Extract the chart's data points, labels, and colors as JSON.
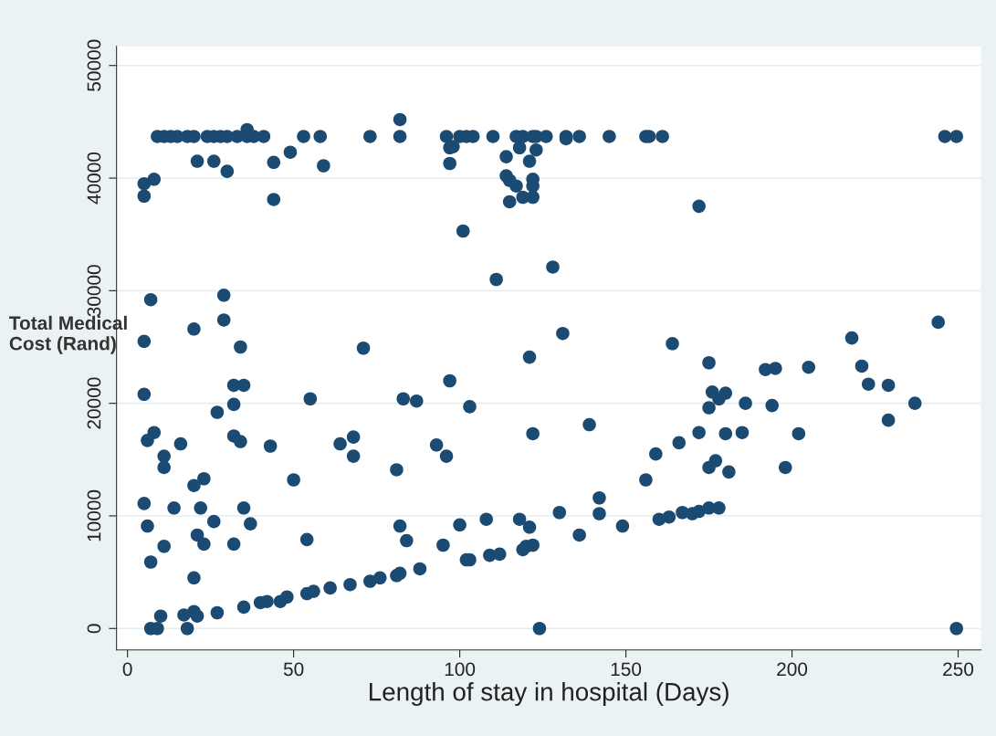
{
  "chart_data": {
    "type": "scatter",
    "xlabel": "Length of stay in hospital (Days)",
    "ylabel": "Total Medical\nCost (Rand)",
    "xlim": [
      -3.3,
      256.9
    ],
    "ylim": [
      -1900,
      51700
    ],
    "xticks": [
      0,
      50,
      100,
      150,
      200,
      250
    ],
    "yticks": [
      0,
      10000,
      20000,
      30000,
      40000,
      50000
    ],
    "grid": "y",
    "marker": "circle",
    "color": "#1b4a72",
    "x": [
      9,
      11,
      13,
      15,
      18,
      20,
      24,
      26,
      28,
      30,
      33,
      36,
      38,
      41,
      53,
      58,
      73,
      82,
      96,
      100,
      102,
      104,
      110,
      117,
      119,
      122,
      123,
      126,
      132,
      132,
      136,
      145,
      156,
      157,
      161,
      246,
      249.5,
      36,
      82,
      21,
      26,
      30,
      44,
      49,
      59,
      8,
      5,
      5,
      44,
      7,
      29,
      29,
      20,
      5,
      34,
      71,
      97,
      98,
      97,
      114,
      121,
      123,
      118,
      114,
      115,
      117,
      122,
      122,
      119,
      122,
      115,
      172,
      101,
      111,
      128,
      131,
      164,
      121,
      175,
      32,
      35,
      5,
      55,
      83,
      87,
      32,
      27,
      8,
      6,
      16,
      32,
      34,
      43,
      64,
      68,
      68,
      11,
      11,
      81,
      50,
      23,
      20,
      5,
      14,
      22,
      35,
      6,
      26,
      37,
      21,
      23,
      32,
      11,
      54,
      82,
      84,
      7,
      20,
      88,
      10,
      17,
      20,
      21,
      27,
      35,
      40,
      42,
      46,
      48,
      54,
      56,
      61,
      67,
      73,
      76,
      81,
      82,
      7,
      9,
      18,
      97,
      103,
      122,
      139,
      93,
      96,
      156,
      159,
      166,
      172,
      176,
      175,
      95,
      100,
      102,
      103,
      108,
      109,
      112,
      118,
      121,
      119,
      120,
      122,
      130,
      136,
      142,
      142,
      149,
      160,
      163,
      167,
      170,
      172,
      175,
      124,
      244,
      218,
      192,
      195,
      205,
      221,
      223,
      229,
      237,
      229,
      180,
      178,
      186,
      194,
      180,
      185,
      202,
      175,
      177,
      181,
      198,
      178,
      249.5
    ],
    "values": [
      43700,
      43700,
      43700,
      43700,
      43700,
      43700,
      43700,
      43700,
      43700,
      43700,
      43700,
      43700,
      43700,
      43700,
      43700,
      43700,
      43700,
      43700,
      43700,
      43700,
      43700,
      43700,
      43700,
      43700,
      43700,
      43700,
      43700,
      43700,
      43700,
      43500,
      43700,
      43700,
      43700,
      43700,
      43700,
      43700,
      43700,
      44300,
      45200,
      41500,
      41500,
      40600,
      41400,
      42300,
      41100,
      39900,
      39500,
      38400,
      38100,
      29200,
      29600,
      27400,
      26600,
      25500,
      25000,
      24900,
      42700,
      42800,
      41300,
      41900,
      41500,
      42500,
      42700,
      40200,
      39800,
      39300,
      39900,
      39300,
      38300,
      38300,
      37900,
      37500,
      35300,
      31000,
      32100,
      26200,
      25300,
      24100,
      23600,
      21600,
      21600,
      20800,
      20400,
      20400,
      20200,
      19900,
      19200,
      17400,
      16700,
      16400,
      17100,
      16600,
      16200,
      16400,
      17000,
      15300,
      15300,
      14300,
      14100,
      13200,
      13300,
      12700,
      11100,
      10700,
      10700,
      10700,
      9100,
      9500,
      9300,
      8300,
      7500,
      7500,
      7300,
      7900,
      9100,
      7800,
      5900,
      4500,
      5300,
      1100,
      1200,
      1500,
      1100,
      1400,
      1900,
      2300,
      2400,
      2400,
      2800,
      3100,
      3300,
      3600,
      3900,
      4200,
      4500,
      4700,
      4900,
      0,
      0,
      0,
      22000,
      19700,
      17300,
      18100,
      16300,
      15300,
      13200,
      15500,
      16500,
      17400,
      21000,
      19600,
      7400,
      9200,
      6100,
      6100,
      9700,
      6500,
      6600,
      9700,
      9000,
      7000,
      7300,
      7400,
      10300,
      8300,
      11600,
      10200,
      9100,
      9700,
      9900,
      10300,
      10200,
      10400,
      10700,
      0,
      27200,
      25800,
      23000,
      23100,
      23200,
      23300,
      21700,
      21600,
      20000,
      18500,
      20900,
      20400,
      20000,
      19800,
      17300,
      17400,
      17300,
      14300,
      14900,
      13900,
      14300,
      10700,
      0
    ]
  }
}
